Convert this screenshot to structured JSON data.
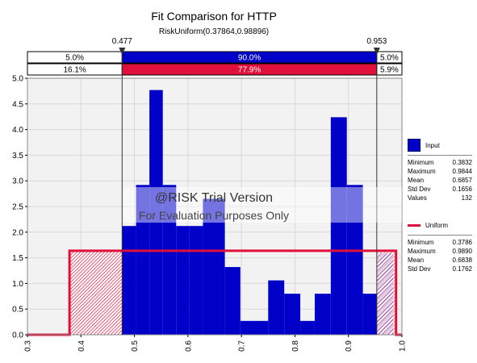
{
  "chart_data": {
    "type": "histogram",
    "title": "Fit Comparison for HTTP",
    "subtitle": "RiskUniform(0.37864,0.98896)",
    "xlim": [
      0.3,
      1.0
    ],
    "ylim": [
      0,
      5.0
    ],
    "x_ticks": [
      "0.3",
      "0.4",
      "0.5",
      "0.6",
      "0.7",
      "0.8",
      "0.9",
      "1.0"
    ],
    "y_ticks": [
      "0.0",
      "0.5",
      "1.0",
      "1.5",
      "2.0",
      "2.5",
      "3.0",
      "3.5",
      "4.0",
      "4.5",
      "5.0"
    ],
    "markers": {
      "left": 0.477,
      "right": 0.953,
      "left_label": "0.477",
      "right_label": "0.953"
    },
    "band_input": {
      "left": "5.0%",
      "middle": "90.0%",
      "right": "5.0%"
    },
    "band_uniform": {
      "left": "16.1%",
      "middle": "77.9%",
      "right": "5.9%"
    },
    "bars": [
      {
        "x0": 0.383,
        "x1": 0.477,
        "density": 0.27,
        "hatched": true
      },
      {
        "x0": 0.477,
        "x1": 0.503,
        "density": 2.12,
        "hatched": false
      },
      {
        "x0": 0.503,
        "x1": 0.528,
        "density": 2.92,
        "hatched": false
      },
      {
        "x0": 0.528,
        "x1": 0.553,
        "density": 4.77,
        "hatched": false
      },
      {
        "x0": 0.553,
        "x1": 0.578,
        "density": 2.92,
        "hatched": false
      },
      {
        "x0": 0.578,
        "x1": 0.603,
        "density": 2.12,
        "hatched": false
      },
      {
        "x0": 0.603,
        "x1": 0.628,
        "density": 2.12,
        "hatched": false
      },
      {
        "x0": 0.628,
        "x1": 0.669,
        "density": 2.65,
        "hatched": false
      },
      {
        "x0": 0.669,
        "x1": 0.698,
        "density": 1.32,
        "hatched": false
      },
      {
        "x0": 0.698,
        "x1": 0.75,
        "density": 0.27,
        "hatched": false
      },
      {
        "x0": 0.75,
        "x1": 0.78,
        "density": 1.06,
        "hatched": false
      },
      {
        "x0": 0.78,
        "x1": 0.81,
        "density": 0.8,
        "hatched": false
      },
      {
        "x0": 0.81,
        "x1": 0.837,
        "density": 0.27,
        "hatched": false
      },
      {
        "x0": 0.837,
        "x1": 0.867,
        "density": 0.8,
        "hatched": false
      },
      {
        "x0": 0.867,
        "x1": 0.897,
        "density": 4.24,
        "hatched": false
      },
      {
        "x0": 0.897,
        "x1": 0.927,
        "density": 2.92,
        "hatched": false
      },
      {
        "x0": 0.927,
        "x1": 0.953,
        "density": 0.8,
        "hatched": false
      },
      {
        "x0": 0.953,
        "x1": 0.984,
        "density": 1.59,
        "hatched": true
      }
    ],
    "uniform_curve": {
      "x_min": 0.37864,
      "x_max": 0.98896,
      "density": 1.638,
      "hatched_left_end": 0.477,
      "hatched_right_start": 0.953
    },
    "watermark": {
      "line1": "@RISK Trial Version",
      "line2": "For Evaluation Purposes Only"
    }
  },
  "legend": {
    "input": {
      "label": "Input",
      "stats": [
        {
          "k": "Minimum",
          "v": "0.3832"
        },
        {
          "k": "Maximum",
          "v": "0.9844"
        },
        {
          "k": "Mean",
          "v": "0.6857"
        },
        {
          "k": "Std Dev",
          "v": "0.1656"
        },
        {
          "k": "Values",
          "v": "132"
        }
      ]
    },
    "uniform": {
      "label": "Uniform",
      "stats": [
        {
          "k": "Minimum",
          "v": "0.3786"
        },
        {
          "k": "Maximum",
          "v": "0.9890"
        },
        {
          "k": "Mean",
          "v": "0.6838"
        },
        {
          "k": "Std Dev",
          "v": "0.1762"
        }
      ]
    }
  },
  "colors": {
    "input_bar": "#0000c8",
    "uniform_line": "#e0103a",
    "band_input": "#0000c8",
    "band_uniform": "#e0103a",
    "plot_bg": "#f2f2f2",
    "grid": "#d8d8d8"
  }
}
